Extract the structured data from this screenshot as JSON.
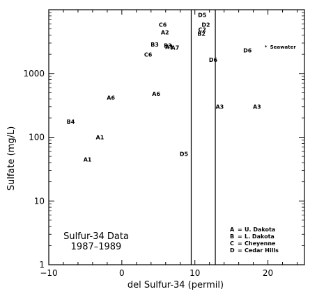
{
  "chart_data": {
    "type": "scatter",
    "xlabel": "del Sulfur-34 (permil)",
    "ylabel": "Sulfate (mg/L)",
    "xlim": [
      -10,
      25
    ],
    "ylim": [
      1,
      10000
    ],
    "yscale": "log",
    "x_ticks": [
      -10,
      0,
      10,
      20
    ],
    "x_tick_labels": [
      "−10",
      "0",
      "10",
      "20"
    ],
    "y_ticks": [
      1,
      10,
      100,
      1000
    ],
    "y_tick_labels": [
      "1",
      "10",
      "100",
      "1000"
    ],
    "grid": false,
    "title_lines": [
      "Sulfur-34 Data",
      "1987–1989"
    ],
    "legend": [
      {
        "key": "A",
        "text": "U. Dakota"
      },
      {
        "key": "B",
        "text": "L. Dakota"
      },
      {
        "key": "C",
        "text": "Cheyenne"
      },
      {
        "key": "D",
        "text": "Cedar Hills"
      }
    ],
    "vertical_lines": [
      9.5,
      12.8
    ],
    "points": [
      {
        "label": "B4",
        "x": -7.0,
        "y": 175
      },
      {
        "label": "A1",
        "x": -3.0,
        "y": 100
      },
      {
        "label": "A1",
        "x": -4.7,
        "y": 45
      },
      {
        "label": "A6",
        "x": -1.5,
        "y": 420
      },
      {
        "label": "A6",
        "x": 4.7,
        "y": 480
      },
      {
        "label": "C6",
        "x": 5.6,
        "y": 5800
      },
      {
        "label": "A2",
        "x": 5.9,
        "y": 4400
      },
      {
        "label": "B3",
        "x": 4.5,
        "y": 2850
      },
      {
        "label": "B3",
        "x": 6.3,
        "y": 2750
      },
      {
        "label": "A1",
        "x": 6.5,
        "y": 2600
      },
      {
        "label": "A7",
        "x": 7.3,
        "y": 2550
      },
      {
        "label": "C6",
        "x": 3.6,
        "y": 1980
      },
      {
        "label": "D5",
        "x": 8.5,
        "y": 55
      },
      {
        "label": "D5",
        "x": 11.0,
        "y": 8300
      },
      {
        "label": "D2",
        "x": 11.5,
        "y": 5800
      },
      {
        "label": "C2",
        "x": 11.0,
        "y": 4900
      },
      {
        "label": "B2",
        "x": 10.9,
        "y": 4200
      },
      {
        "label": "D6",
        "x": 12.5,
        "y": 1650
      },
      {
        "label": "D6",
        "x": 17.2,
        "y": 2300
      },
      {
        "label": "A3",
        "x": 13.4,
        "y": 300
      },
      {
        "label": "A3",
        "x": 18.5,
        "y": 300
      }
    ],
    "annotations": [
      {
        "text": "Seawater",
        "x": 20.0,
        "y": 2650
      }
    ]
  }
}
